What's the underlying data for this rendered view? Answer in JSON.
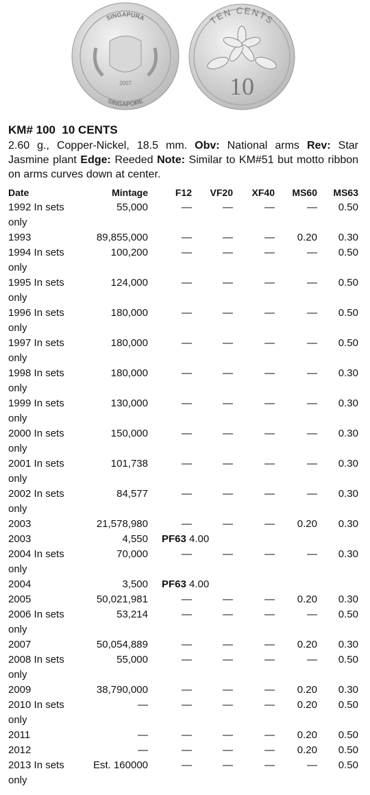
{
  "coins": {
    "obverse": {
      "top": "SINGAPURA",
      "bottom": "SINGAPORE",
      "year": "2007"
    },
    "reverse": {
      "top": "TEN CENTS",
      "value": "10"
    }
  },
  "header": {
    "title": "KM# 100  10 CENTS"
  },
  "description": {
    "specs": "2.60 g., Copper-Nickel, 18.5 mm.",
    "obv_label": "Obv:",
    "obv": "National arms",
    "rev_label": "Rev:",
    "rev": "Star Jasmine plant",
    "edge_label": "Edge:",
    "edge": "Reeded",
    "note_label": "Note:",
    "note": "Similar to KM#51 but motto ribbon on arms curves down at center."
  },
  "table": {
    "columns": [
      "Date",
      "Mintage",
      "F12",
      "VF20",
      "XF40",
      "MS60",
      "MS63"
    ],
    "rows": [
      [
        "1992 In sets only",
        "55,000",
        "—",
        "—",
        "—",
        "—",
        "0.50"
      ],
      [
        "1993",
        "89,855,000",
        "—",
        "—",
        "—",
        "0.20",
        "0.30"
      ],
      [
        "1994 In sets only",
        "100,200",
        "—",
        "—",
        "—",
        "—",
        "0.50"
      ],
      [
        "1995 In sets only",
        "124,000",
        "—",
        "—",
        "—",
        "—",
        "0.50"
      ],
      [
        "1996 In sets only",
        "180,000",
        "—",
        "—",
        "—",
        "—",
        "0.50"
      ],
      [
        "1997 In sets only",
        "180,000",
        "—",
        "—",
        "—",
        "—",
        "0.50"
      ],
      [
        "1998 In sets only",
        "180,000",
        "—",
        "—",
        "—",
        "—",
        "0.30"
      ],
      [
        "1999 In sets only",
        "130,000",
        "—",
        "—",
        "—",
        "—",
        "0.30"
      ],
      [
        "2000 In sets only",
        "150,000",
        "—",
        "—",
        "—",
        "—",
        "0.30"
      ],
      [
        "2001 In sets only",
        "101,738",
        "—",
        "—",
        "—",
        "—",
        "0.30"
      ],
      [
        "2002 In sets only",
        "84,577",
        "—",
        "—",
        "—",
        "—",
        "0.30"
      ],
      [
        "2003",
        "21,578,980",
        "—",
        "—",
        "—",
        "0.20",
        "0.30"
      ],
      {
        "date": "2003",
        "mintage": "4,550",
        "proof_grade": "PF63",
        "proof_value": "4.00"
      },
      [
        "2004 In sets only",
        "70,000",
        "—",
        "—",
        "—",
        "—",
        "0.30"
      ],
      {
        "date": "2004",
        "mintage": "3,500",
        "proof_grade": "PF63",
        "proof_value": "4.00"
      },
      [
        "2005",
        "50,021,981",
        "—",
        "—",
        "—",
        "0.20",
        "0.30"
      ],
      [
        "2006 In sets only",
        "53,214",
        "—",
        "—",
        "—",
        "—",
        "0.50"
      ],
      [
        "2007",
        "50,054,889",
        "—",
        "—",
        "—",
        "0.20",
        "0.30"
      ],
      [
        "2008 In sets only",
        "55,000",
        "—",
        "—",
        "—",
        "—",
        "0.50"
      ],
      [
        "2009",
        "38,790,000",
        "—",
        "—",
        "—",
        "0.20",
        "0.30"
      ],
      [
        "2010 In sets only",
        "—",
        "—",
        "—",
        "—",
        "0.20",
        "0.50"
      ],
      [
        "2011",
        "—",
        "—",
        "—",
        "—",
        "0.20",
        "0.50"
      ],
      [
        "2012",
        "—",
        "—",
        "—",
        "—",
        "0.20",
        "0.50"
      ],
      [
        "2013 In sets only",
        "Est. 160000",
        "—",
        "—",
        "—",
        "—",
        "0.50"
      ]
    ]
  }
}
